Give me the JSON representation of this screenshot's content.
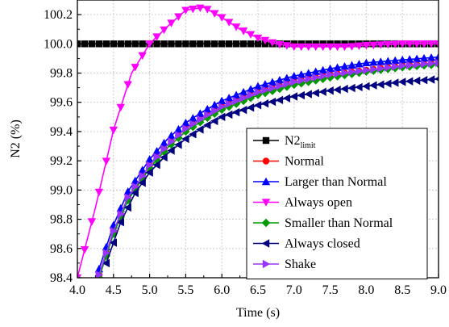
{
  "chart_data": {
    "type": "line",
    "title": "",
    "xlabel": "Time (s)",
    "ylabel": "N2 (%)",
    "xlim": [
      4.0,
      9.0
    ],
    "ylim": [
      98.4,
      100.3
    ],
    "xticks": [
      "4.0",
      "4.5",
      "5.0",
      "5.5",
      "6.0",
      "6.5",
      "7.0",
      "7.5",
      "8.0",
      "8.5",
      "9.0"
    ],
    "yticks": [
      "98.4",
      "98.6",
      "98.8",
      "99.0",
      "99.2",
      "99.4",
      "99.6",
      "99.8",
      "100.0",
      "100.2"
    ],
    "grid": true,
    "legend_position": "bottom-right",
    "series": [
      {
        "name": "N2limit",
        "name_main": "N2",
        "name_sub": "limit",
        "color": "#000000",
        "marker": "square",
        "x": [
          4.0,
          4.5,
          5.0,
          5.5,
          6.0,
          6.5,
          7.0,
          7.5,
          8.0,
          8.5,
          9.0
        ],
        "y": [
          100.0,
          100.0,
          100.0,
          100.0,
          100.0,
          100.0,
          100.0,
          100.0,
          100.0,
          100.0,
          100.0
        ]
      },
      {
        "name": "Normal",
        "color": "#ff0000",
        "marker": "circle",
        "x": [
          4.3,
          4.5,
          4.7,
          5.0,
          5.25,
          5.5,
          5.75,
          6.0,
          6.5,
          7.0,
          7.5,
          8.0,
          8.5,
          9.0
        ],
        "y": [
          98.42,
          98.72,
          98.95,
          99.17,
          99.31,
          99.42,
          99.5,
          99.57,
          99.67,
          99.74,
          99.79,
          99.82,
          99.85,
          99.87
        ]
      },
      {
        "name": "Larger than Normal",
        "color": "#0000ff",
        "marker": "triangle-up",
        "x": [
          4.3,
          4.5,
          4.7,
          5.0,
          5.25,
          5.5,
          5.75,
          6.0,
          6.5,
          7.0,
          7.5,
          8.0,
          8.5,
          9.0
        ],
        "y": [
          98.46,
          98.76,
          98.99,
          99.21,
          99.35,
          99.46,
          99.54,
          99.61,
          99.71,
          99.78,
          99.83,
          99.87,
          99.89,
          99.91
        ]
      },
      {
        "name": "Always open",
        "color": "#ff00ff",
        "marker": "triangle-down",
        "x": [
          4.0,
          4.25,
          4.5,
          4.75,
          5.0,
          5.25,
          5.5,
          5.75,
          6.0,
          6.25,
          6.5,
          6.75,
          7.0,
          7.25,
          7.5,
          7.75,
          8.0,
          8.5,
          9.0
        ],
        "y": [
          98.4,
          98.88,
          99.41,
          99.8,
          100.0,
          100.12,
          100.23,
          100.25,
          100.18,
          100.1,
          100.04,
          100.0,
          99.98,
          99.98,
          99.98,
          99.98,
          99.99,
          100.0,
          100.0
        ]
      },
      {
        "name": "Smaller than Normal",
        "color": "#009900",
        "marker": "diamond",
        "x": [
          4.3,
          4.5,
          4.7,
          5.0,
          5.25,
          5.5,
          5.75,
          6.0,
          6.5,
          7.0,
          7.5,
          8.0,
          8.5,
          9.0
        ],
        "y": [
          98.4,
          98.7,
          98.93,
          99.15,
          99.29,
          99.4,
          99.48,
          99.55,
          99.65,
          99.72,
          99.77,
          99.81,
          99.84,
          99.86
        ]
      },
      {
        "name": "Always closed",
        "color": "#000080",
        "marker": "triangle-left",
        "x": [
          4.4,
          4.6,
          4.8,
          5.0,
          5.25,
          5.5,
          5.75,
          6.0,
          6.5,
          7.0,
          7.5,
          8.0,
          8.5,
          9.0
        ],
        "y": [
          98.5,
          98.78,
          98.98,
          99.12,
          99.25,
          99.35,
          99.43,
          99.5,
          99.58,
          99.64,
          99.68,
          99.71,
          99.74,
          99.76
        ]
      },
      {
        "name": "Shake",
        "color": "#9933ff",
        "marker": "triangle-right",
        "x": [
          4.3,
          4.5,
          4.7,
          5.0,
          5.25,
          5.5,
          5.75,
          6.0,
          6.5,
          7.0,
          7.5,
          8.0,
          8.5,
          9.0
        ],
        "y": [
          98.42,
          98.72,
          98.95,
          99.17,
          99.31,
          99.42,
          99.5,
          99.57,
          99.67,
          99.74,
          99.79,
          99.82,
          99.85,
          99.87
        ]
      }
    ]
  }
}
